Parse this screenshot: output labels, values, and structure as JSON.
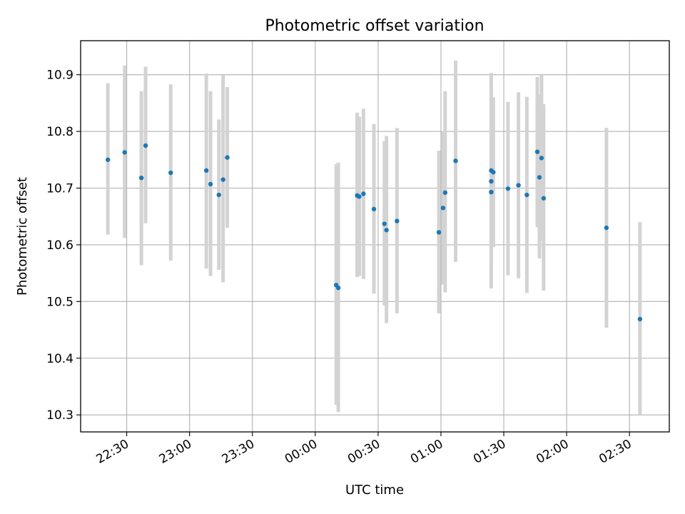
{
  "chart_data": {
    "type": "scatter",
    "title": "Photometric offset variation",
    "xlabel": "UTC time",
    "ylabel": "Photometric offset",
    "ylim": [
      10.27,
      10.96
    ],
    "xlim": [
      "22:08",
      "02:49"
    ],
    "x_tick_labels": [
      "22:30",
      "23:00",
      "23:30",
      "00:00",
      "00:30",
      "01:00",
      "01:30",
      "02:00",
      "02:30"
    ],
    "y_tick_labels": [
      "10.3",
      "10.4",
      "10.5",
      "10.6",
      "10.7",
      "10.8",
      "10.9"
    ],
    "grid": true,
    "legend": "none",
    "colors": {
      "points": "#1f77b4",
      "errorbars": "#d3d3d3",
      "grid": "#b0b0b0"
    },
    "points": [
      {
        "x": "22:21",
        "y": 10.75,
        "ylo": 10.618,
        "yhi": 10.885
      },
      {
        "x": "22:29",
        "y": 10.763,
        "ylo": 10.612,
        "yhi": 10.916
      },
      {
        "x": "22:37",
        "y": 10.718,
        "ylo": 10.564,
        "yhi": 10.871
      },
      {
        "x": "22:39",
        "y": 10.775,
        "ylo": 10.638,
        "yhi": 10.914
      },
      {
        "x": "22:51",
        "y": 10.727,
        "ylo": 10.572,
        "yhi": 10.883
      },
      {
        "x": "23:08",
        "y": 10.731,
        "ylo": 10.558,
        "yhi": 10.902
      },
      {
        "x": "23:10",
        "y": 10.707,
        "ylo": 10.545,
        "yhi": 10.871
      },
      {
        "x": "23:14",
        "y": 10.688,
        "ylo": 10.556,
        "yhi": 10.821
      },
      {
        "x": "23:16",
        "y": 10.715,
        "ylo": 10.534,
        "yhi": 10.899
      },
      {
        "x": "23:18",
        "y": 10.754,
        "ylo": 10.63,
        "yhi": 10.878
      },
      {
        "x": "00:10",
        "y": 10.529,
        "ylo": 10.318,
        "yhi": 10.742
      },
      {
        "x": "00:11",
        "y": 10.524,
        "ylo": 10.305,
        "yhi": 10.745
      },
      {
        "x": "00:20",
        "y": 10.687,
        "ylo": 10.543,
        "yhi": 10.833
      },
      {
        "x": "00:21",
        "y": 10.685,
        "ylo": 10.545,
        "yhi": 10.826
      },
      {
        "x": "00:23",
        "y": 10.69,
        "ylo": 10.54,
        "yhi": 10.84
      },
      {
        "x": "00:28",
        "y": 10.663,
        "ylo": 10.514,
        "yhi": 10.813
      },
      {
        "x": "00:33",
        "y": 10.637,
        "ylo": 10.493,
        "yhi": 10.783
      },
      {
        "x": "00:34",
        "y": 10.626,
        "ylo": 10.462,
        "yhi": 10.792
      },
      {
        "x": "00:39",
        "y": 10.642,
        "ylo": 10.479,
        "yhi": 10.806
      },
      {
        "x": "00:59",
        "y": 10.622,
        "ylo": 10.479,
        "yhi": 10.766
      },
      {
        "x": "01:01",
        "y": 10.665,
        "ylo": 10.53,
        "yhi": 10.8
      },
      {
        "x": "01:02",
        "y": 10.692,
        "ylo": 10.516,
        "yhi": 10.871
      },
      {
        "x": "01:07",
        "y": 10.748,
        "ylo": 10.57,
        "yhi": 10.925
      },
      {
        "x": "01:24",
        "y": 10.712,
        "ylo": 10.56,
        "yhi": 10.86
      },
      {
        "x": "01:24",
        "y": 10.693,
        "ylo": 10.523,
        "yhi": 10.903
      },
      {
        "x": "01:24",
        "y": 10.731,
        "ylo": 10.585,
        "yhi": 10.876
      },
      {
        "x": "01:25",
        "y": 10.728,
        "ylo": 10.596,
        "yhi": 10.86
      },
      {
        "x": "01:32",
        "y": 10.699,
        "ylo": 10.546,
        "yhi": 10.852
      },
      {
        "x": "01:37",
        "y": 10.705,
        "ylo": 10.541,
        "yhi": 10.869
      },
      {
        "x": "01:41",
        "y": 10.688,
        "ylo": 10.515,
        "yhi": 10.861
      },
      {
        "x": "01:46",
        "y": 10.764,
        "ylo": 10.631,
        "yhi": 10.896
      },
      {
        "x": "01:47",
        "y": 10.719,
        "ylo": 10.576,
        "yhi": 10.865
      },
      {
        "x": "01:48",
        "y": 10.753,
        "ylo": 10.607,
        "yhi": 10.899
      },
      {
        "x": "01:49",
        "y": 10.682,
        "ylo": 10.519,
        "yhi": 10.848
      },
      {
        "x": "02:19",
        "y": 10.63,
        "ylo": 10.454,
        "yhi": 10.806
      },
      {
        "x": "02:35",
        "y": 10.469,
        "ylo": 10.301,
        "yhi": 10.64
      }
    ]
  }
}
